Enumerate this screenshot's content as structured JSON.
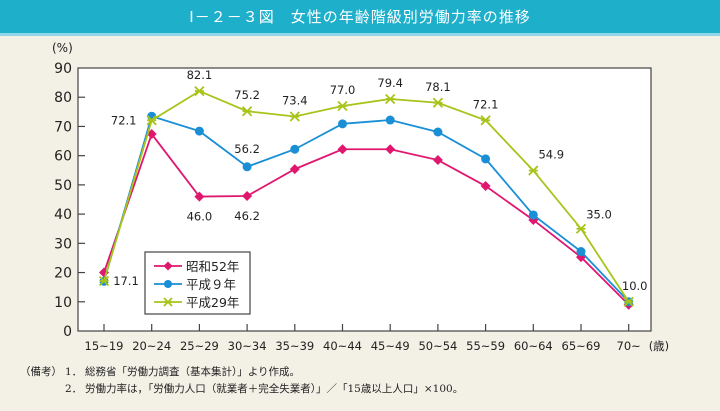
{
  "header": {
    "title": "Ⅰ－２－３図　女性の年齢階級別労働力率の推移"
  },
  "chart_data": {
    "type": "line",
    "title": "Ⅰ－２－３図　女性の年齢階級別労働力率の推移",
    "xlabel": "(歳)",
    "ylabel": "(%)",
    "ylim": [
      0,
      90
    ],
    "yticks": [
      0,
      10,
      20,
      30,
      40,
      50,
      60,
      70,
      80,
      90
    ],
    "ytick_labels": [
      "0",
      "10",
      "20",
      "30",
      "40",
      "50",
      "60",
      "70",
      "80",
      "90"
    ],
    "categories": [
      "15~19",
      "20~24",
      "25~29",
      "30~34",
      "35~39",
      "40~44",
      "45~49",
      "50~54",
      "55~59",
      "60~64",
      "65~69",
      "70~"
    ],
    "grid": false,
    "legend_position": "bottom-left",
    "series": [
      {
        "name": "昭和52年",
        "color": "#e0176f",
        "marker": "diamond",
        "values": [
          20.0,
          67.4,
          46.0,
          46.2,
          55.4,
          62.2,
          62.2,
          58.5,
          49.6,
          38.0,
          25.3,
          9.0
        ],
        "labels": [
          null,
          null,
          "46.0",
          "46.2",
          null,
          null,
          null,
          null,
          null,
          null,
          null,
          null
        ]
      },
      {
        "name": "平成９年",
        "color": "#1a8fd6",
        "marker": "circle",
        "values": [
          17.0,
          73.5,
          68.4,
          56.2,
          62.2,
          70.9,
          72.2,
          68.1,
          58.9,
          39.7,
          27.2,
          10.0
        ],
        "labels": [
          null,
          null,
          null,
          "56.2",
          null,
          null,
          null,
          null,
          null,
          null,
          null,
          null
        ]
      },
      {
        "name": "平成29年",
        "color": "#a8c41a",
        "marker": "asterisk",
        "values": [
          17.1,
          72.1,
          82.1,
          75.2,
          73.4,
          77.0,
          79.4,
          78.1,
          72.1,
          54.9,
          35.0,
          10.0
        ],
        "labels": [
          "17.1",
          "72.1",
          "82.1",
          "75.2",
          "73.4",
          "77.0",
          "79.4",
          "78.1",
          "72.1",
          "54.9",
          "35.0",
          "10.0"
        ]
      }
    ]
  },
  "notes": {
    "head": "（備考）",
    "items": [
      {
        "num": "1．",
        "text": "総務省「労働力調査（基本集計）」より作成。"
      },
      {
        "num": "2．",
        "text": "労働力率は，「労働力人口（就業者＋完全失業者）」／「15歳以上人口」×100。"
      }
    ]
  }
}
